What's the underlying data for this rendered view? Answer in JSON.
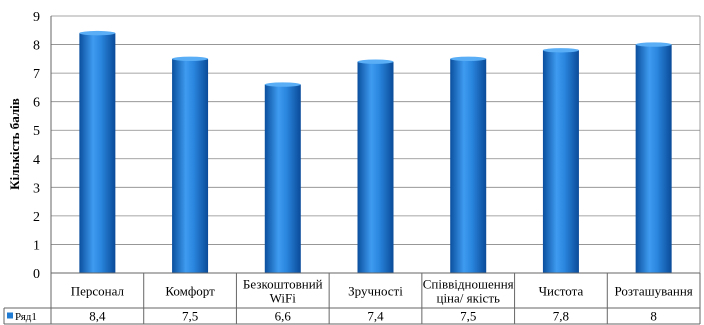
{
  "chart_data": {
    "type": "bar",
    "title": "",
    "xlabel": "",
    "ylabel": "Кількість балів",
    "ylim": [
      0,
      9
    ],
    "yticks": [
      0,
      1,
      2,
      3,
      4,
      5,
      6,
      7,
      8,
      9
    ],
    "grid": true,
    "legend_placement": "data-table-left",
    "bar_color": "#1F7CD2",
    "categories": [
      [
        "Персонал"
      ],
      [
        "Комфорт"
      ],
      [
        "Безкоштовний",
        "WiFi"
      ],
      [
        "Зручності"
      ],
      [
        "Співвідношення",
        "ціна/ якість"
      ],
      [
        "Чистота"
      ],
      [
        "Розташування"
      ]
    ],
    "series": [
      {
        "name": "Ряд1",
        "values": [
          8.4,
          7.5,
          6.6,
          7.4,
          7.5,
          7.8,
          8
        ],
        "value_labels": [
          "8,4",
          "7,5",
          "6,6",
          "7,4",
          "7,5",
          "7,8",
          "8"
        ]
      }
    ]
  }
}
